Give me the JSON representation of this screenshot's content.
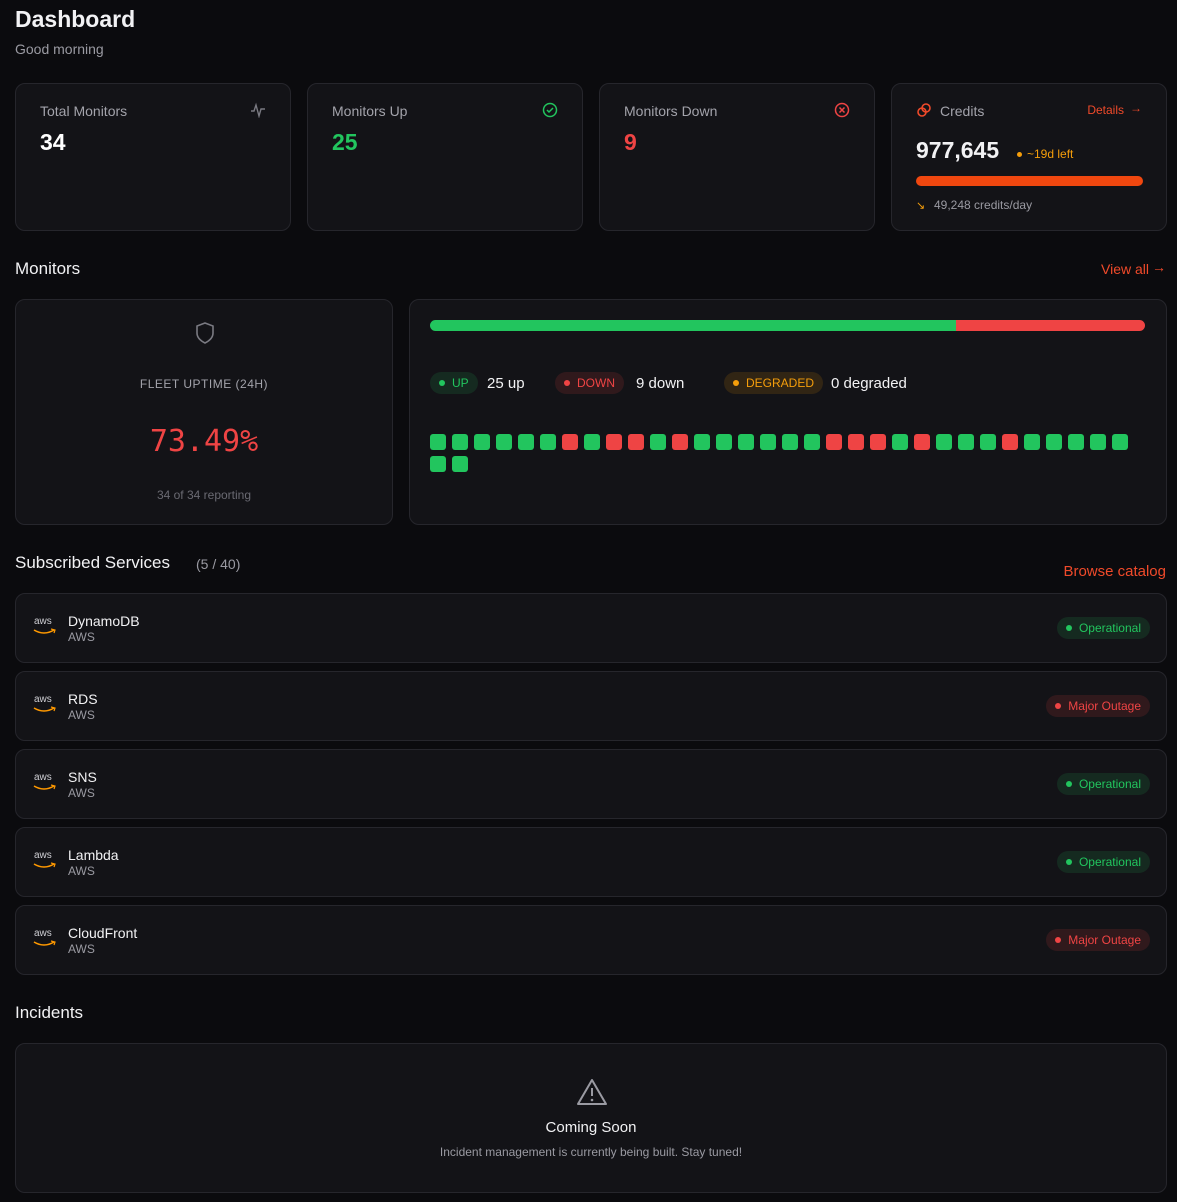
{
  "header": {
    "title": "Dashboard",
    "subtitle": "Good morning"
  },
  "stats": [
    {
      "label": "Total Monitors",
      "value": "34",
      "color": "#ffffff"
    },
    {
      "label": "Monitors Up",
      "value": "25",
      "color": "#22c55e"
    },
    {
      "label": "Monitors Down",
      "value": "9",
      "color": "#ef4444"
    }
  ],
  "credits": {
    "label": "Credits",
    "link": "Details",
    "value": "977,645",
    "remaining": "~19d left",
    "rate": "49,248 credits/day"
  },
  "monitors": {
    "title": "Monitors",
    "link": "View all",
    "uptime_label": "FLEET UPTIME (24H)",
    "uptime_value": "73.49%",
    "reporting": "34 of 34 reporting",
    "legend": [
      {
        "badge": "UP",
        "text": "25 up",
        "color": "#22c55e"
      },
      {
        "badge": "DOWN",
        "text": "9 down",
        "color": "#ef4444"
      },
      {
        "badge": "DEGRADED",
        "text": "0 degraded",
        "color": "#f59e0b"
      }
    ],
    "statuses": [
      "up",
      "up",
      "up",
      "up",
      "up",
      "up",
      "down",
      "up",
      "down",
      "down",
      "up",
      "down",
      "up",
      "up",
      "up",
      "up",
      "up",
      "up",
      "down",
      "down",
      "down",
      "up",
      "down",
      "up",
      "up",
      "up",
      "down",
      "up",
      "up",
      "up",
      "up",
      "up",
      "up",
      "up"
    ],
    "status_colors": {
      "up": "#22c55e",
      "down": "#ef4444"
    }
  },
  "services": {
    "title": "Subscribed Services",
    "count": "(5 / 40)",
    "link": "Browse catalog",
    "items": [
      {
        "logo": "aws",
        "name": "DynamoDB",
        "provider": "AWS",
        "status": "Operational",
        "color": "#22c55e"
      },
      {
        "logo": "aws",
        "name": "RDS",
        "provider": "AWS",
        "status": "Major Outage",
        "color": "#ef4444"
      },
      {
        "logo": "aws",
        "name": "SNS",
        "provider": "AWS",
        "status": "Operational",
        "color": "#22c55e"
      },
      {
        "logo": "aws",
        "name": "Lambda",
        "provider": "AWS",
        "status": "Operational",
        "color": "#22c55e"
      },
      {
        "logo": "aws",
        "name": "CloudFront",
        "provider": "AWS",
        "status": "Major Outage",
        "color": "#ef4444"
      }
    ]
  },
  "incidents": {
    "title": "Incidents",
    "heading": "Coming Soon",
    "message": "Incident management is currently being built. Stay tuned!"
  }
}
